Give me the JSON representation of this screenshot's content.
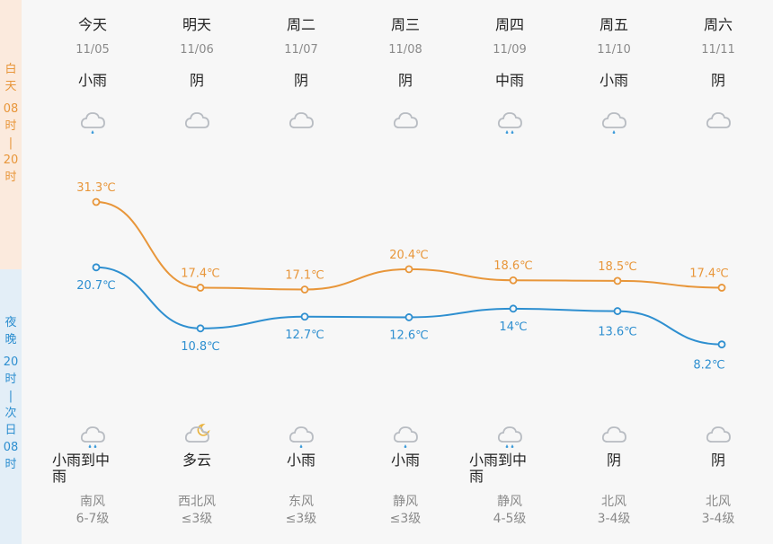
{
  "side": {
    "day_chars": [
      "白",
      "天",
      "",
      "08",
      "时",
      "|",
      "20",
      "时"
    ],
    "night_chars": [
      "夜",
      "晚",
      "",
      "20",
      "时",
      "|",
      "次",
      "日",
      "08",
      "时"
    ]
  },
  "days": [
    {
      "name": "今天",
      "date": "11/05",
      "day_weather": "小雨",
      "day_icon": "light-rain-icon",
      "night_icon": "moderate-rain-icon",
      "night_weather": "小雨到中雨",
      "wind_dir": "南风",
      "wind_level": "6-7级"
    },
    {
      "name": "明天",
      "date": "11/06",
      "day_weather": "阴",
      "day_icon": "overcast-cloud-icon",
      "night_icon": "partly-cloudy-night-icon",
      "night_weather": "多云",
      "wind_dir": "西北风",
      "wind_level": "≤3级"
    },
    {
      "name": "周二",
      "date": "11/07",
      "day_weather": "阴",
      "day_icon": "overcast-cloud-icon",
      "night_icon": "light-rain-icon",
      "night_weather": "小雨",
      "wind_dir": "东风",
      "wind_level": "≤3级"
    },
    {
      "name": "周三",
      "date": "11/08",
      "day_weather": "阴",
      "day_icon": "overcast-cloud-icon",
      "night_icon": "light-rain-icon",
      "night_weather": "小雨",
      "wind_dir": "静风",
      "wind_level": "≤3级"
    },
    {
      "name": "周四",
      "date": "11/09",
      "day_weather": "中雨",
      "day_icon": "moderate-rain-icon",
      "night_icon": "moderate-rain-icon",
      "night_weather": "小雨到中雨",
      "wind_dir": "静风",
      "wind_level": "4-5级"
    },
    {
      "name": "周五",
      "date": "11/10",
      "day_weather": "小雨",
      "day_icon": "light-rain-icon",
      "night_icon": "overcast-cloud-icon",
      "night_weather": "阴",
      "wind_dir": "北风",
      "wind_level": "3-4级"
    },
    {
      "name": "周六",
      "date": "11/11",
      "day_weather": "阴",
      "day_icon": "overcast-cloud-icon",
      "night_icon": "overcast-cloud-icon",
      "night_weather": "阴",
      "wind_dir": "北风",
      "wind_level": "3-4级"
    }
  ],
  "chart_data": {
    "type": "line",
    "x": [
      "今天",
      "明天",
      "周二",
      "周三",
      "周四",
      "周五",
      "周六"
    ],
    "series": [
      {
        "name": "high",
        "values": [
          31.3,
          17.4,
          17.1,
          20.4,
          18.6,
          18.5,
          17.4
        ],
        "labels": [
          "31.3℃",
          "17.4℃",
          "17.1℃",
          "20.4℃",
          "18.6℃",
          "18.5℃",
          "17.4℃"
        ],
        "color": "#e8963a"
      },
      {
        "name": "low",
        "values": [
          20.7,
          10.8,
          12.7,
          12.6,
          14,
          13.6,
          8.2
        ],
        "labels": [
          "20.7℃",
          "10.8℃",
          "12.7℃",
          "12.6℃",
          "14℃",
          "13.6℃",
          "8.2℃"
        ],
        "color": "#2e8fd0"
      }
    ],
    "grid": false
  },
  "colors": {
    "high": "#e8963a",
    "low": "#2e8fd0",
    "icon_cloud": "#b8bcc2",
    "rain_drop": "#3a9ad9"
  }
}
